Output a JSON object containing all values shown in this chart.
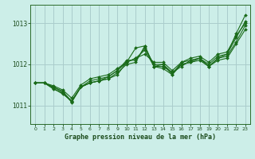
{
  "title": "Graphe pression niveau de la mer (hPa)",
  "background_color": "#cceee8",
  "grid_color": "#aacccc",
  "line_color": "#1a6b1a",
  "marker_color": "#1a6b1a",
  "xlim": [
    -0.5,
    23.5
  ],
  "ylim": [
    1010.55,
    1013.45
  ],
  "yticks": [
    1011,
    1012,
    1013
  ],
  "xticks": [
    0,
    1,
    2,
    3,
    4,
    5,
    6,
    7,
    8,
    9,
    10,
    11,
    12,
    13,
    14,
    15,
    16,
    17,
    18,
    19,
    20,
    21,
    22,
    23
  ],
  "series": [
    [
      1011.55,
      1011.55,
      1011.45,
      1011.35,
      1011.1,
      1011.45,
      1011.55,
      1011.6,
      1011.65,
      1011.75,
      1012.05,
      1012.4,
      1012.45,
      1011.95,
      1012.0,
      1011.8,
      1011.95,
      1012.1,
      1012.15,
      1011.95,
      1012.15,
      1012.25,
      1012.75,
      1013.2
    ],
    [
      1011.55,
      1011.55,
      1011.4,
      1011.3,
      1011.1,
      1011.45,
      1011.55,
      1011.6,
      1011.65,
      1011.8,
      1012.0,
      1012.05,
      1012.45,
      1011.95,
      1011.9,
      1011.75,
      1012.0,
      1012.05,
      1012.1,
      1011.95,
      1012.1,
      1012.15,
      1012.5,
      1012.85
    ],
    [
      1011.55,
      1011.55,
      1011.42,
      1011.28,
      1011.12,
      1011.45,
      1011.55,
      1011.6,
      1011.7,
      1011.85,
      1012.05,
      1012.15,
      1012.35,
      1011.95,
      1011.95,
      1011.8,
      1012.0,
      1012.05,
      1012.15,
      1011.95,
      1012.15,
      1012.2,
      1012.55,
      1012.95
    ],
    [
      1011.55,
      1011.55,
      1011.45,
      1011.32,
      1011.08,
      1011.45,
      1011.6,
      1011.65,
      1011.7,
      1011.85,
      1012.1,
      1012.1,
      1012.4,
      1012.0,
      1012.0,
      1011.75,
      1012.05,
      1012.1,
      1012.15,
      1012.0,
      1012.2,
      1012.25,
      1012.65,
      1013.05
    ],
    [
      1011.55,
      1011.55,
      1011.48,
      1011.38,
      1011.18,
      1011.5,
      1011.65,
      1011.7,
      1011.75,
      1011.9,
      1012.05,
      1012.15,
      1012.25,
      1012.05,
      1012.05,
      1011.85,
      1012.05,
      1012.15,
      1012.2,
      1012.05,
      1012.25,
      1012.3,
      1012.7,
      1013.0
    ]
  ]
}
